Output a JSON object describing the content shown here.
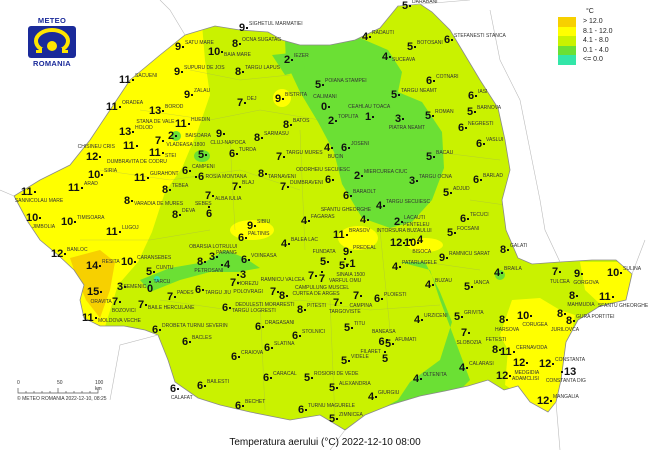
{
  "logo": {
    "top": "METEO",
    "bottom": "ROMANIA"
  },
  "title": "Temperatura aerului (°C) 2022-12-10 08:00",
  "legend": {
    "unit": "°C",
    "items": [
      {
        "label": "> 12.0",
        "color": "#f7d000"
      },
      {
        "label": "8.1 - 12.0",
        "color": "#ffff00"
      },
      {
        "label": "4.1 - 8.0",
        "color": "#c9f200"
      },
      {
        "label": "0.1 - 4.0",
        "color": "#6be034"
      },
      {
        "label": "<= 0.0",
        "color": "#33e6a8"
      }
    ]
  },
  "scale": {
    "ticks": [
      "0",
      "50",
      "100 km"
    ],
    "credit": "© METEO ROMANIA 2022-12-10, 08:25"
  },
  "stations": [
    {
      "name": "Darabani",
      "value": "5"
    },
    {
      "name": "Stefanesti Stanca",
      "value": "6"
    },
    {
      "name": "Botosani",
      "value": "5"
    },
    {
      "name": "Radauti",
      "value": "4"
    },
    {
      "name": "Suceava",
      "value": "4"
    },
    {
      "name": "Cotnari",
      "value": "6"
    },
    {
      "name": "Iasi",
      "value": "6"
    },
    {
      "name": "Barnova",
      "value": "5"
    },
    {
      "name": "Roman",
      "value": "5"
    },
    {
      "name": "Negresti",
      "value": "6"
    },
    {
      "name": "Vaslui",
      "value": "6"
    },
    {
      "name": "Targu Neamt",
      "value": "5"
    },
    {
      "name": "Piatra Neamt",
      "value": "3"
    },
    {
      "name": "Ceahlau Toaca",
      "value": "1"
    },
    {
      "name": "Bacau",
      "value": "5"
    },
    {
      "name": "Targu Ocna",
      "value": "3"
    },
    {
      "name": "Adjud",
      "value": "5"
    },
    {
      "name": "Barlad",
      "value": "6"
    },
    {
      "name": "Tecuci",
      "value": "6"
    },
    {
      "name": "Focsani",
      "value": "5"
    },
    {
      "name": "Galati",
      "value": "8"
    },
    {
      "name": "Braila",
      "value": "4"
    },
    {
      "name": "Tulcea",
      "value": "7"
    },
    {
      "name": "Gorgova",
      "value": "9"
    },
    {
      "name": "Mahmudia",
      "value": "8"
    },
    {
      "name": "Sulina",
      "value": "10"
    },
    {
      "name": "Sfantu Gheorghe",
      "value": "11"
    },
    {
      "name": "Jurilovca",
      "value": "8"
    },
    {
      "name": "Gura Portitei",
      "value": "8"
    },
    {
      "name": "Corugea",
      "value": "10"
    },
    {
      "name": "Harsova",
      "value": "8"
    },
    {
      "name": "Fetesti",
      "value": "8"
    },
    {
      "name": "Cernavoda",
      "value": "11"
    },
    {
      "name": "Medgidia",
      "value": "12"
    },
    {
      "name": "Constanta",
      "value": "12"
    },
    {
      "name": "Constanta Dig",
      "value": "13"
    },
    {
      "name": "Adamclisi",
      "value": "12"
    },
    {
      "name": "Mangalia",
      "value": "12"
    },
    {
      "name": "Calarasi",
      "value": "4"
    },
    {
      "name": "Slobozia",
      "value": "7"
    },
    {
      "name": "Grivita",
      "value": "5"
    },
    {
      "name": "Urziceni",
      "value": "4"
    },
    {
      "name": "Oltenita",
      "value": "4"
    },
    {
      "name": "Giurgiu",
      "value": "4"
    },
    {
      "name": "Afumati",
      "value": "5"
    },
    {
      "name": "Baneasa",
      "value": "6"
    },
    {
      "name": "Filaret",
      "value": "5"
    },
    {
      "name": "Titu",
      "value": "5"
    },
    {
      "name": "Videle",
      "value": "5"
    },
    {
      "name": "Alexandria",
      "value": "5"
    },
    {
      "name": "Zimnicea",
      "value": "5"
    },
    {
      "name": "Turnu Magurele",
      "value": "6"
    },
    {
      "name": "Rosiori de Vede",
      "value": "5"
    },
    {
      "name": "Ploiesti",
      "value": "6"
    },
    {
      "name": "Targoviste",
      "value": "7"
    },
    {
      "name": "Campina",
      "value": "7"
    },
    {
      "name": "Sinaia 1500",
      "value": "5"
    },
    {
      "name": "Predeal",
      "value": "9"
    },
    {
      "name": "Varful Omu",
      "value": "-1"
    },
    {
      "name": "Fundata",
      "value": "5"
    },
    {
      "name": "Campulung Muscel",
      "value": "7"
    },
    {
      "name": "Brasov",
      "value": "11"
    },
    {
      "name": "Patarlagele",
      "value": "4"
    },
    {
      "name": "Buzau",
      "value": "4"
    },
    {
      "name": "Ianca",
      "value": "5"
    },
    {
      "name": "Ramnicu Sarat",
      "value": "9"
    },
    {
      "name": "Bisoca",
      "value": "10"
    },
    {
      "name": "Intorsura Buzaului",
      "value": "12"
    },
    {
      "name": "Penteleu",
      "value": "4"
    },
    {
      "name": "Lacauti",
      "value": "2"
    },
    {
      "name": "Sfantu Gheorghe",
      "value": "4"
    },
    {
      "name": "Targu Secuiesc",
      "value": "4"
    },
    {
      "name": "Baraolt",
      "value": "6"
    },
    {
      "name": "Miercurea Ciuc",
      "value": "2"
    },
    {
      "name": "Odorheiu Secuiesc",
      "value": "6"
    },
    {
      "name": "Joseni",
      "value": "6"
    },
    {
      "name": "Bucin",
      "value": "4"
    },
    {
      "name": "Toplita",
      "value": "2"
    },
    {
      "name": "Calimani",
      "value": "0"
    },
    {
      "name": "Poiana Stampei",
      "value": "5"
    },
    {
      "name": "Iezer",
      "value": "2"
    },
    {
      "name": "Bistrita",
      "value": "9"
    },
    {
      "name": "Batos",
      "value": "8"
    },
    {
      "name": "Sighetul Marmatiei",
      "value": "9"
    },
    {
      "name": "Ocna Sugatag",
      "value": "8"
    },
    {
      "name": "Baia Mare",
      "value": "10"
    },
    {
      "name": "Targu Lapus",
      "value": "8"
    },
    {
      "name": "Satu Mare",
      "value": "9"
    },
    {
      "name": "Supuru de Jos",
      "value": "9"
    },
    {
      "name": "Sacueni",
      "value": "11"
    },
    {
      "name": "Zalau",
      "value": "9"
    },
    {
      "name": "Dej",
      "value": "7"
    },
    {
      "name": "Oradea",
      "value": "11"
    },
    {
      "name": "Borod",
      "value": "13"
    },
    {
      "name": "Vladeasa 1800",
      "value": "2"
    },
    {
      "name": "Huedin",
      "value": "11"
    },
    {
      "name": "Cluj-Napoca",
      "value": "9"
    },
    {
      "name": "Holod",
      "value": "13"
    },
    {
      "name": "Stana de Vale",
      "value": "7"
    },
    {
      "name": "Dumbravita de Codru",
      "value": "11"
    },
    {
      "name": "Stei",
      "value": "11"
    },
    {
      "name": "Chisineu Cris",
      "value": "12"
    },
    {
      "name": "Siria",
      "value": "10"
    },
    {
      "name": "Gurahont",
      "value": "11"
    },
    {
      "name": "Sannicolau Mare",
      "value": "11"
    },
    {
      "name": "Arad",
      "value": "11"
    },
    {
      "name": "Varadia de Mures",
      "value": "8"
    },
    {
      "name": "Tebea",
      "value": "8"
    },
    {
      "name": "Campeni",
      "value": "6"
    },
    {
      "name": "Rosia Montana",
      "value": "6"
    },
    {
      "name": "Baisoara",
      "value": "5"
    },
    {
      "name": "Turda",
      "value": "6"
    },
    {
      "name": "Sarmasu",
      "value": "8"
    },
    {
      "name": "Targu Mures",
      "value": "7"
    },
    {
      "name": "Tarnaveni",
      "value": "8"
    },
    {
      "name": "Dumbraveni",
      "value": "7"
    },
    {
      "name": "Blaj",
      "value": "7"
    },
    {
      "name": "Alba Iulia",
      "value": "7"
    },
    {
      "name": "Sebes",
      "value": "6"
    },
    {
      "name": "Deva",
      "value": "8"
    },
    {
      "name": "Jimbolia",
      "value": "10"
    },
    {
      "name": "Timisoara",
      "value": "10"
    },
    {
      "name": "Lugoj",
      "value": "11"
    },
    {
      "name": "Banloc",
      "value": "12"
    },
    {
      "name": "Caransebes",
      "value": "10"
    },
    {
      "name": "Resita",
      "value": "14"
    },
    {
      "name": "Semenic",
      "value": "3"
    },
    {
      "name": "Cuntu",
      "value": "5"
    },
    {
      "name": "Tarcu",
      "value": "0"
    },
    {
      "name": "Oravita",
      "value": "15"
    },
    {
      "name": "Bozovici",
      "value": "7"
    },
    {
      "name": "Baile Herculane",
      "value": "7"
    },
    {
      "name": "Moldova Veche",
      "value": "11"
    },
    {
      "name": "Pades",
      "value": "7"
    },
    {
      "name": "Targu Jiu",
      "value": "6"
    },
    {
      "name": "Petrosani",
      "value": "8"
    },
    {
      "name": "Obarsia Lotrului",
      "value": "3"
    },
    {
      "name": "Parang",
      "value": "4"
    },
    {
      "name": "Voineasa",
      "value": "6"
    },
    {
      "name": "Horezu",
      "value": "3"
    },
    {
      "name": "Polovragi",
      "value": "7"
    },
    {
      "name": "Sibiu",
      "value": "9"
    },
    {
      "name": "Paltinis",
      "value": "6"
    },
    {
      "name": "Fagaras",
      "value": "4"
    },
    {
      "name": "Balea Lac",
      "value": "4"
    },
    {
      "name": "Curtea de Arges",
      "value": "7"
    },
    {
      "name": "Ramnicu Valcea",
      "value": "7"
    },
    {
      "name": "Dedulesti Moraresti",
      "value": "8"
    },
    {
      "name": "Pitesti",
      "value": "8"
    },
    {
      "name": "Targu Logresti",
      "value": "6"
    },
    {
      "name": "Dragasani",
      "value": "6"
    },
    {
      "name": "Stolnici",
      "value": "6"
    },
    {
      "name": "Slatina",
      "value": "6"
    },
    {
      "name": "Drobeta Turnu Severin",
      "value": "6"
    },
    {
      "name": "Bacles",
      "value": "6"
    },
    {
      "name": "Craiova",
      "value": "6"
    },
    {
      "name": "Caracal",
      "value": "6"
    },
    {
      "name": "Calafat",
      "value": "6"
    },
    {
      "name": "Bailesti",
      "value": "6"
    },
    {
      "name": "Bechet",
      "value": "6"
    }
  ]
}
